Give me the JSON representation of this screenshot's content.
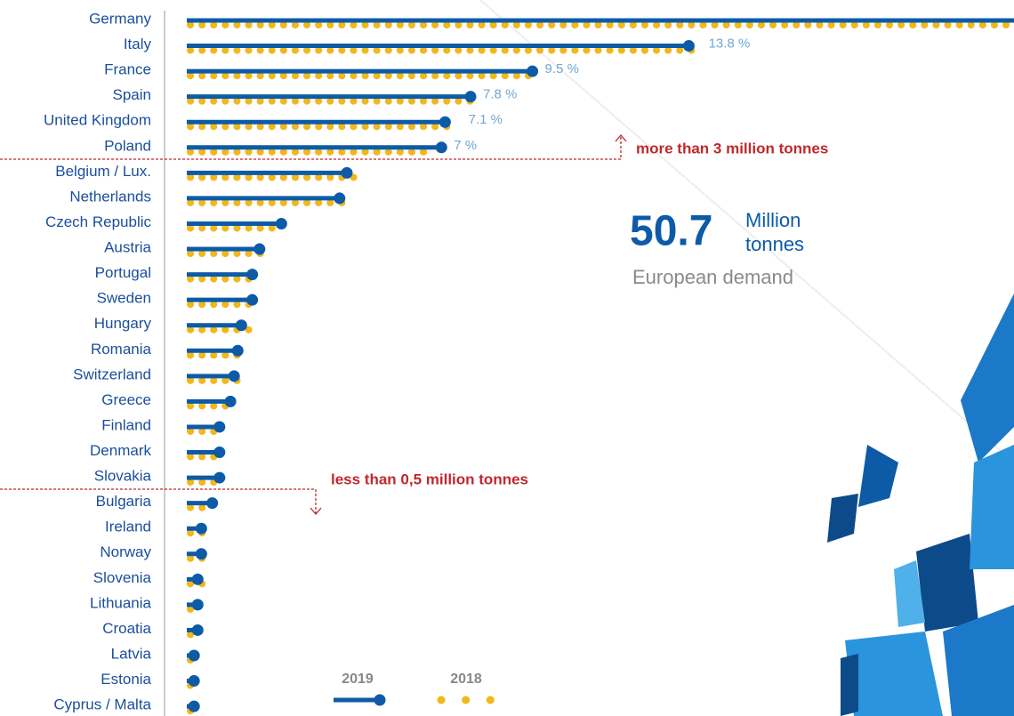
{
  "chart_data": {
    "type": "lollipop",
    "categories": [
      "Germany",
      "Italy",
      "France",
      "Spain",
      "United Kingdom",
      "Poland",
      "Belgium / Lux.",
      "Netherlands",
      "Czech Republic",
      "Austria",
      "Portugal",
      "Sweden",
      "Hungary",
      "Romania",
      "Switzerland",
      "Greece",
      "Finland",
      "Denmark",
      "Slovakia",
      "Bulgaria",
      "Ireland",
      "Norway",
      "Slovenia",
      "Lithuania",
      "Croatia",
      "Latvia",
      "Estonia",
      "Cyprus / Malta"
    ],
    "series": [
      {
        "name": "2019",
        "color": "#0d5ba6",
        "values": [
          24.6,
          13.8,
          9.5,
          7.8,
          7.1,
          7,
          4.4,
          4.2,
          2.6,
          2.0,
          1.8,
          1.8,
          1.5,
          1.4,
          1.3,
          1.2,
          0.9,
          0.9,
          0.9,
          0.7,
          0.4,
          0.4,
          0.3,
          0.3,
          0.3,
          0.2,
          0.2,
          0.2
        ],
        "value_labels": [
          null,
          "13.8 %",
          "9.5 %",
          "7.8 %",
          "7.1 %",
          "7 %",
          null,
          null,
          null,
          null,
          null,
          null,
          null,
          null,
          null,
          null,
          null,
          null,
          null,
          null,
          null,
          null,
          null,
          null,
          null,
          null,
          null,
          null
        ]
      },
      {
        "name": "2018",
        "color": "#f2b71a",
        "values": [
          24.5,
          14.0,
          9.5,
          7.8,
          7.4,
          6.7,
          4.6,
          4.3,
          2.6,
          2.1,
          1.8,
          1.9,
          1.7,
          1.5,
          1.5,
          1.3,
          1.0,
          1.0,
          1.0,
          0.7,
          0.5,
          0.5,
          0.5,
          0.4,
          0.4,
          0.3,
          0.3,
          0.3
        ]
      }
    ],
    "annotations": {
      "upper_threshold": "more than 3 million tonnes",
      "lower_threshold": "less than 0,5 million tonnes",
      "total_value": "50.7",
      "total_unit_line1": "Million",
      "total_unit_line2": "tonnes",
      "total_caption": "European demand"
    }
  }
}
